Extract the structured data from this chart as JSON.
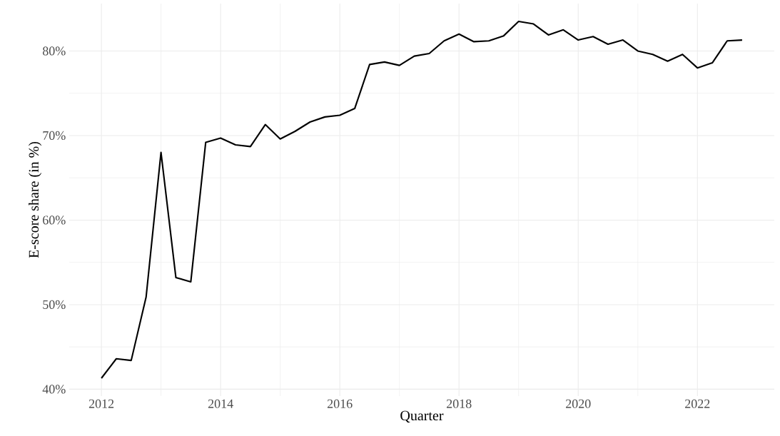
{
  "chart_data": {
    "type": "line",
    "xlabel": "Quarter",
    "ylabel": "E-score share (in %)",
    "x": [
      2012,
      2012.25,
      2012.5,
      2012.75,
      2013,
      2013.25,
      2013.5,
      2013.75,
      2014,
      2014.25,
      2014.5,
      2014.75,
      2015,
      2015.25,
      2015.5,
      2015.75,
      2016,
      2016.25,
      2016.5,
      2016.75,
      2017,
      2017.25,
      2017.5,
      2017.75,
      2018,
      2018.25,
      2018.5,
      2018.75,
      2019,
      2019.25,
      2019.5,
      2019.75,
      2020,
      2020.25,
      2020.5,
      2020.75,
      2021,
      2021.25,
      2021.5,
      2021.75,
      2022,
      2022.25,
      2022.5,
      2022.75
    ],
    "series": [
      {
        "color": "#000000",
        "values": [
          41.3,
          43.6,
          43.4,
          50.9,
          68.0,
          53.2,
          52.7,
          69.2,
          69.7,
          68.9,
          68.7,
          71.3,
          69.6,
          70.5,
          71.6,
          72.2,
          72.4,
          73.2,
          78.4,
          78.7,
          78.3,
          79.4,
          79.7,
          81.2,
          82.0,
          81.1,
          81.2,
          81.8,
          83.5,
          83.2,
          81.9,
          82.5,
          81.3,
          81.7,
          80.8,
          81.3,
          80.0,
          79.6,
          78.8,
          79.6,
          78.0,
          78.6,
          81.2,
          81.3
        ]
      }
    ],
    "xlim": [
      2011.46,
      2023.29
    ],
    "ylim": [
      39.19,
      85.61
    ],
    "xticks": [
      2012,
      2014,
      2016,
      2018,
      2020,
      2022
    ],
    "yticks": [
      {
        "value": 40,
        "label": "40%"
      },
      {
        "value": 50,
        "label": "50%"
      },
      {
        "value": 60,
        "label": "60%"
      },
      {
        "value": 70,
        "label": "70%"
      },
      {
        "value": 80,
        "label": "80%"
      }
    ],
    "grid": true,
    "legend": false,
    "marker": "none",
    "line_style": "solid"
  }
}
